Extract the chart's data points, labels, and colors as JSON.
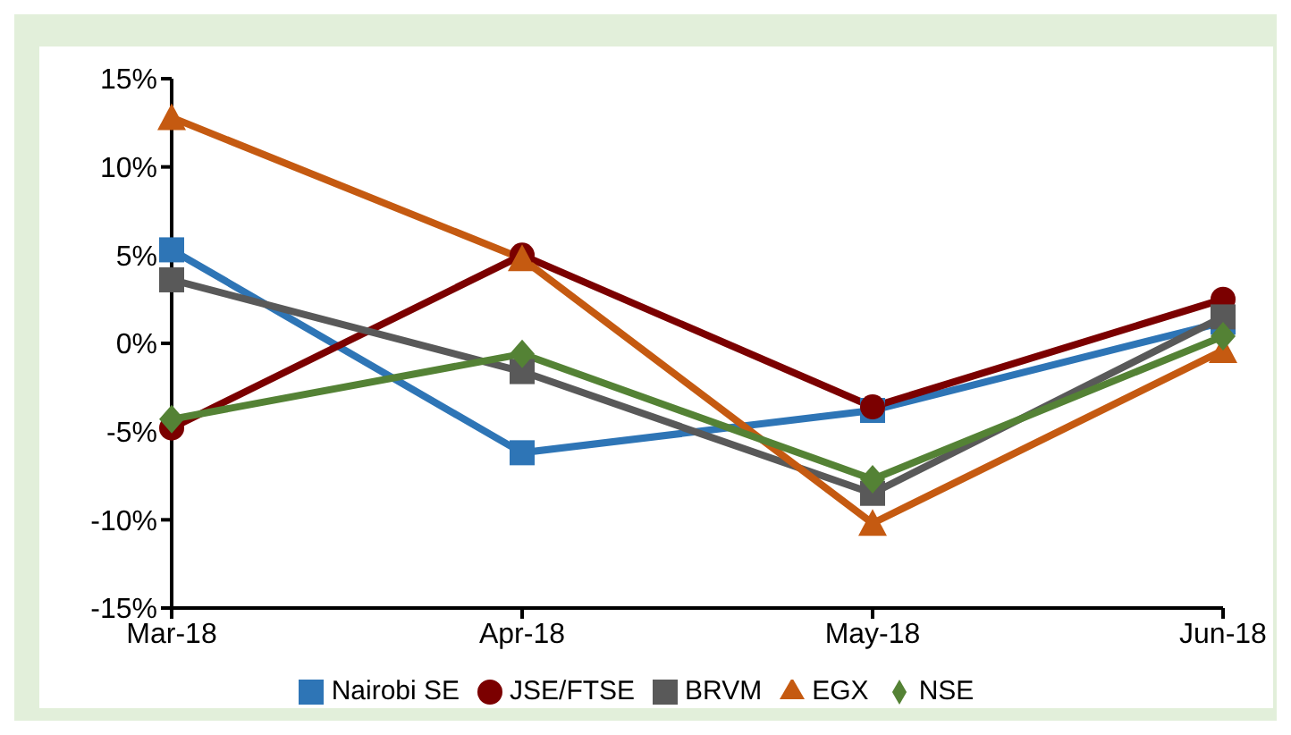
{
  "chart_data": {
    "type": "line",
    "categories": [
      "Mar-18",
      "Apr-18",
      "May-18",
      "Jun-18"
    ],
    "ylim": [
      -15,
      15
    ],
    "yticks": [
      {
        "value": -15,
        "label": "-15%"
      },
      {
        "value": -10,
        "label": "-10%"
      },
      {
        "value": -5,
        "label": "-5%"
      },
      {
        "value": 0,
        "label": "0%"
      },
      {
        "value": 5,
        "label": "5%"
      },
      {
        "value": 10,
        "label": "10%"
      },
      {
        "value": 15,
        "label": "15%"
      }
    ],
    "grid": false,
    "legend": "bottom",
    "series": [
      {
        "name": "Nairobi SE",
        "color": "#2e75b6",
        "marker": "square",
        "values": [
          5.3,
          -6.2,
          -3.8,
          1.2
        ]
      },
      {
        "name": "JSE/FTSE",
        "color": "#7b0000",
        "marker": "circle",
        "values": [
          -4.8,
          5.0,
          -3.6,
          2.5
        ]
      },
      {
        "name": "BRVM",
        "color": "#595959",
        "marker": "square",
        "values": [
          3.6,
          -1.6,
          -8.5,
          1.5
        ]
      },
      {
        "name": "EGX",
        "color": "#c55a11",
        "marker": "triangle",
        "values": [
          12.8,
          4.8,
          -10.2,
          -0.4
        ]
      },
      {
        "name": "NSE",
        "color": "#548235",
        "marker": "diamond",
        "values": [
          -4.3,
          -0.6,
          -7.7,
          0.4
        ]
      }
    ]
  }
}
